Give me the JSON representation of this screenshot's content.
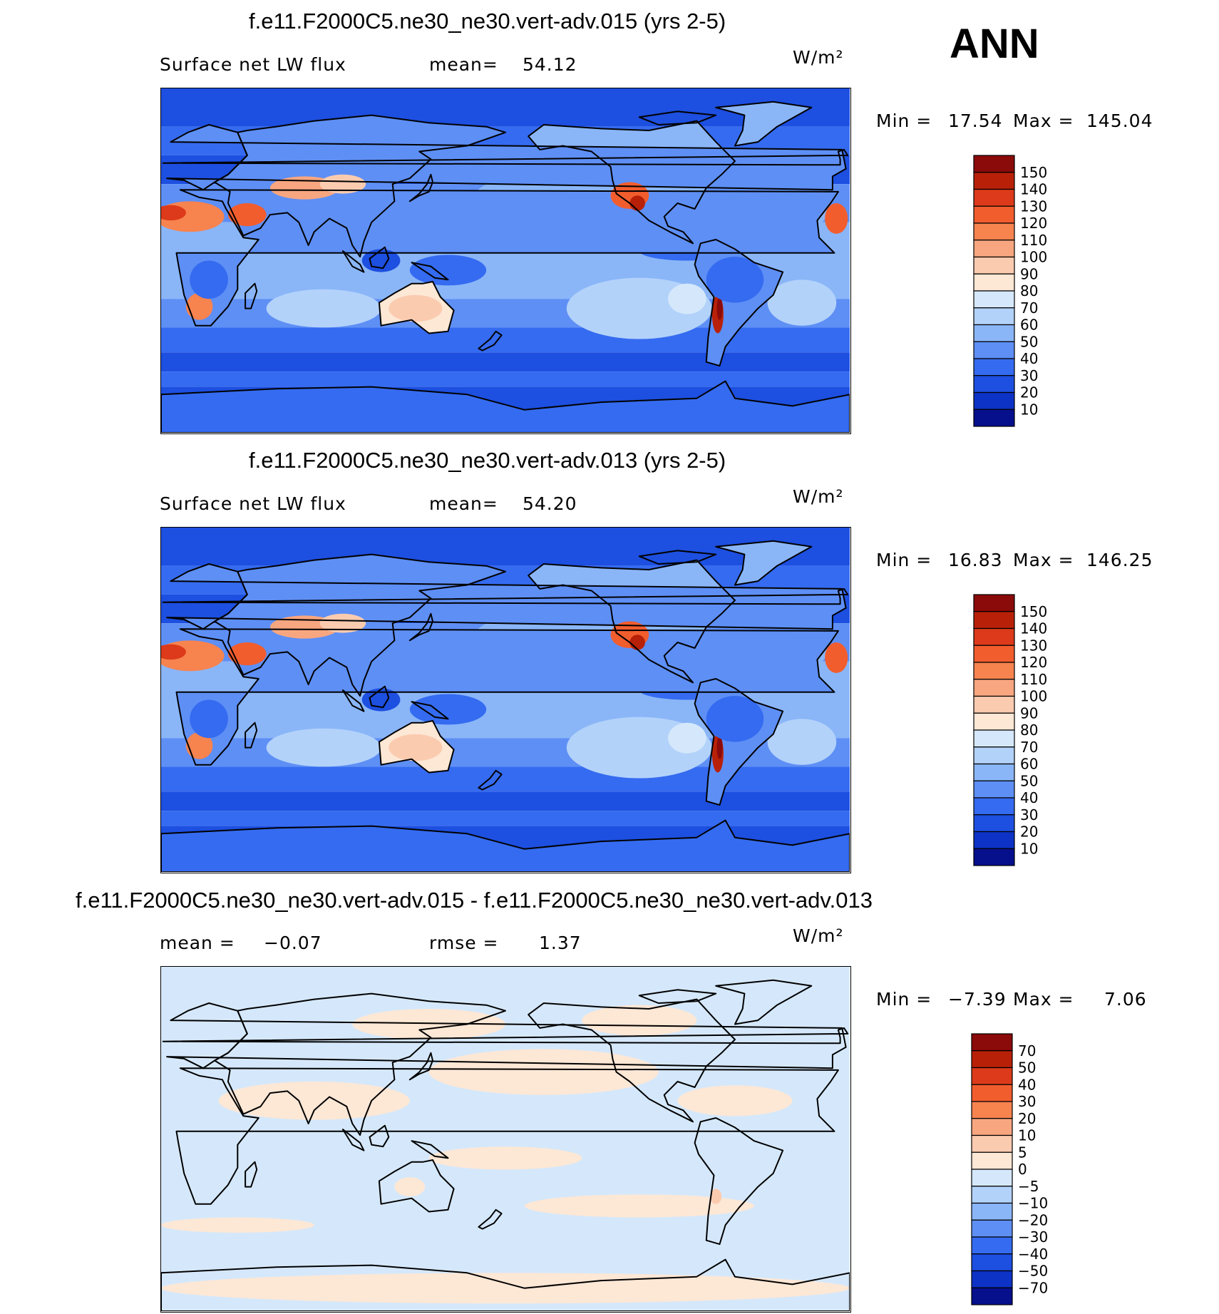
{
  "header": {
    "season": "ANN"
  },
  "panels": [
    {
      "title": "f.e11.F2000C5.ne30_ne30.vert-adv.015 (yrs 2-5)",
      "left_label": "Surface net LW flux",
      "mid_label": "mean=",
      "mid_value": "54.12",
      "units": "W/m²",
      "min_label": "Min =",
      "min_value": "17.54",
      "max_label": "Max =",
      "max_value": "145.04"
    },
    {
      "title": "f.e11.F2000C5.ne30_ne30.vert-adv.013 (yrs 2-5)",
      "left_label": "Surface net LW flux",
      "mid_label": "mean=",
      "mid_value": "54.20",
      "units": "W/m²",
      "min_label": "Min =",
      "min_value": "16.83",
      "max_label": "Max =",
      "max_value": "146.25"
    },
    {
      "title": "f.e11.F2000C5.ne30_ne30.vert-adv.015 - f.e11.F2000C5.ne30_ne30.vert-adv.013",
      "left_label": "mean =",
      "left_value": "−0.07",
      "mid_label": "rmse =",
      "mid_value": "1.37",
      "units": "W/m²",
      "min_label": "Min =",
      "min_value": "−7.39",
      "max_label": "Max =",
      "max_value": "7.06"
    }
  ],
  "chart_data": [
    {
      "type": "heatmap",
      "title": "f.e11.F2000C5.ne30_ne30.vert-adv.015 (yrs 2-5)",
      "field": "Surface net LW flux",
      "units": "W/m2",
      "mean": 54.12,
      "min": 17.54,
      "max": 145.04,
      "colorbar_levels": [
        150,
        140,
        130,
        120,
        110,
        100,
        90,
        80,
        70,
        60,
        50,
        40,
        30,
        20,
        10
      ],
      "colorbar_colors": [
        "#8b0a0a",
        "#b82108",
        "#dc3a1a",
        "#f25d2e",
        "#f7834f",
        "#f8a680",
        "#fbcbb0",
        "#fde7d5",
        "#d5e8fb",
        "#b3d2fa",
        "#8ab6f8",
        "#5e8ff5",
        "#356bf0",
        "#1d4fe0",
        "#0d32c6",
        "#060f8c"
      ],
      "projection": "cylindrical equidistant, centered on Pacific"
    },
    {
      "type": "heatmap",
      "title": "f.e11.F2000C5.ne30_ne30.vert-adv.013 (yrs 2-5)",
      "field": "Surface net LW flux",
      "units": "W/m2",
      "mean": 54.2,
      "min": 16.83,
      "max": 146.25,
      "colorbar_levels": [
        150,
        140,
        130,
        120,
        110,
        100,
        90,
        80,
        70,
        60,
        50,
        40,
        30,
        20,
        10
      ],
      "colorbar_colors": [
        "#8b0a0a",
        "#b82108",
        "#dc3a1a",
        "#f25d2e",
        "#f7834f",
        "#f8a680",
        "#fbcbb0",
        "#fde7d5",
        "#d5e8fb",
        "#b3d2fa",
        "#8ab6f8",
        "#5e8ff5",
        "#356bf0",
        "#1d4fe0",
        "#0d32c6",
        "#060f8c"
      ],
      "projection": "cylindrical equidistant, centered on Pacific"
    },
    {
      "type": "heatmap",
      "title": "f.e11.F2000C5.ne30_ne30.vert-adv.015 - f.e11.F2000C5.ne30_ne30.vert-adv.013",
      "field": "difference",
      "units": "W/m2",
      "mean": -0.07,
      "rmse": 1.37,
      "min": -7.39,
      "max": 7.06,
      "colorbar_levels": [
        70,
        50,
        40,
        30,
        20,
        10,
        5,
        0,
        -5,
        -10,
        -20,
        -30,
        -40,
        -50,
        -70
      ],
      "colorbar_labels": [
        "70",
        "50",
        "40",
        "30",
        "20",
        "10",
        "5",
        "0",
        "−5",
        "−10",
        "−20",
        "−30",
        "−40",
        "−50",
        "−70"
      ],
      "colorbar_colors": [
        "#8b0a0a",
        "#b82108",
        "#dc3a1a",
        "#f25d2e",
        "#f7834f",
        "#f8a680",
        "#fbcbb0",
        "#fde7d5",
        "#d5e8fb",
        "#b3d2fa",
        "#8ab6f8",
        "#5e8ff5",
        "#356bf0",
        "#1d4fe0",
        "#0d32c6",
        "#060f8c"
      ],
      "projection": "cylindrical equidistant, centered on Pacific"
    }
  ]
}
